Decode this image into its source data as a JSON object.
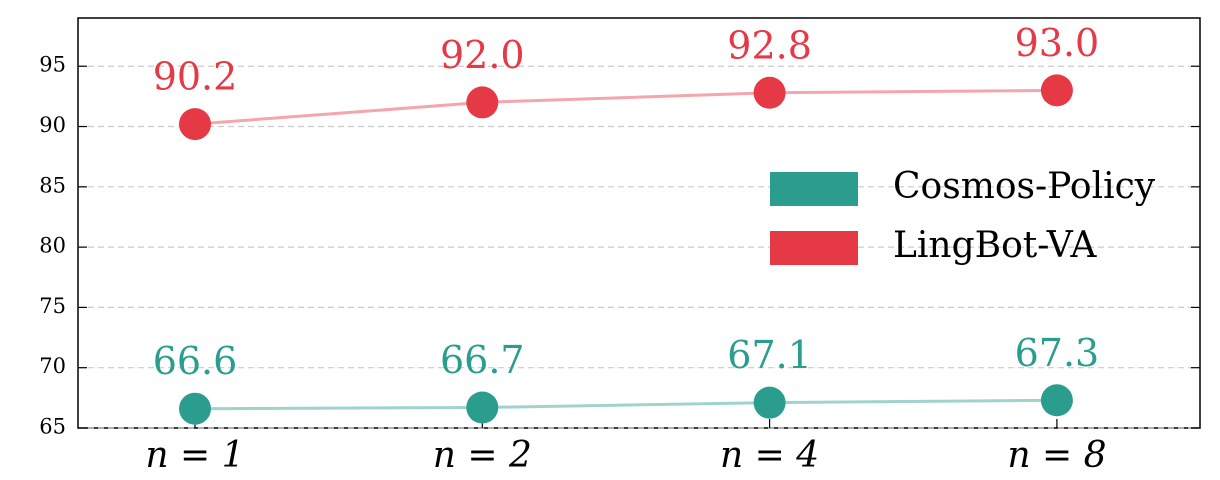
{
  "chart_data": {
    "type": "line",
    "categories": [
      "n = 1",
      "n = 2",
      "n = 4",
      "n = 8"
    ],
    "series": [
      {
        "name": "Cosmos-Policy",
        "color": "#2a9d8f",
        "values": [
          66.6,
          66.7,
          67.1,
          67.3
        ],
        "value_labels": [
          "66.6",
          "66.7",
          "67.1",
          "67.3"
        ]
      },
      {
        "name": "LingBot-VA",
        "color": "#e63946",
        "values": [
          90.2,
          92.0,
          92.8,
          93.0
        ],
        "value_labels": [
          "90.2",
          "92.0",
          "92.8",
          "93.0"
        ]
      }
    ],
    "ylim": [
      65,
      99
    ],
    "yticks": [
      65,
      70,
      75,
      80,
      85,
      90,
      95
    ],
    "grid": true,
    "legend": "right"
  }
}
